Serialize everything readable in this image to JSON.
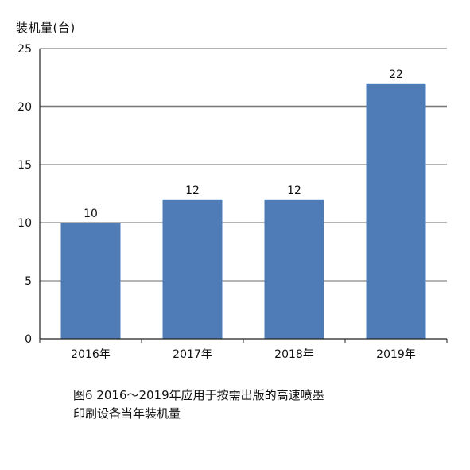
{
  "chart_data": {
    "type": "bar",
    "ylabel": "装机量(台)",
    "categories": [
      "2016年",
      "2017年",
      "2018年",
      "2019年"
    ],
    "values": [
      10,
      12,
      12,
      22
    ],
    "data_labels": [
      "10",
      "12",
      "12",
      "22"
    ],
    "ylim": [
      0,
      25
    ],
    "yticks": [
      0,
      5,
      10,
      15,
      20,
      25
    ],
    "grid": true,
    "bar_color": "#4f7cb7",
    "grid_color": "#888888"
  },
  "caption": {
    "line1": "图6 2016～2019年应用于按需出版的高速喷墨",
    "line2": "印刷设备当年装机量"
  }
}
